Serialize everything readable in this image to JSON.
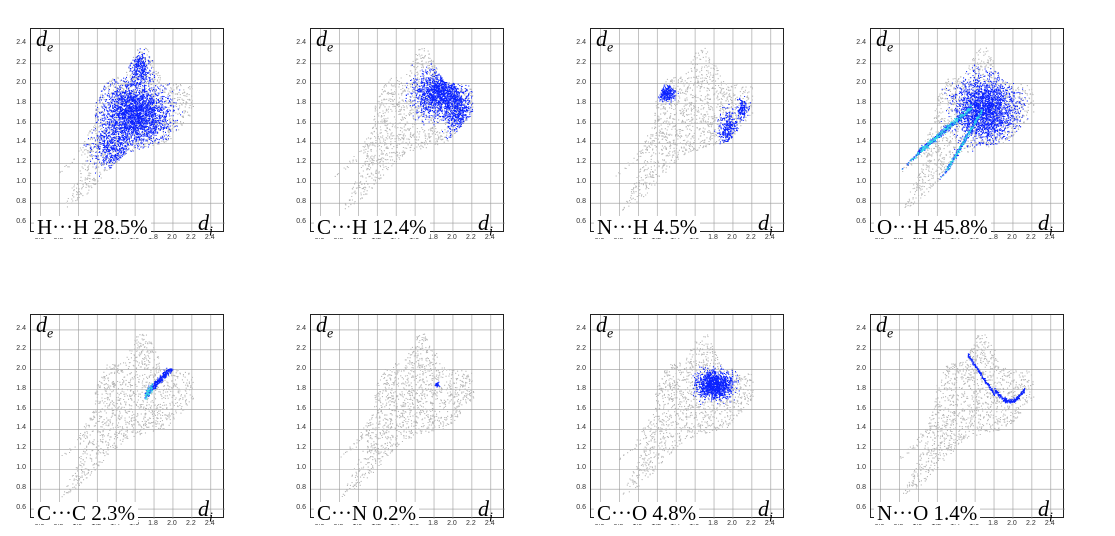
{
  "axis": {
    "ticks": [
      "0.6",
      "0.8",
      "1.0",
      "1.2",
      "1.4",
      "1.6",
      "1.8",
      "2.0",
      "2.2",
      "2.4"
    ],
    "de_base": "d",
    "de_sub": "e",
    "di_base": "d",
    "di_sub": "i"
  },
  "colors": {
    "background_cloud": "#b8b8b8",
    "contact_blue": "#0a22ff",
    "contact_cyan": "#2fd6e6",
    "grid": "#9a9a9a"
  },
  "panels": [
    {
      "label": "H···H 28.5%",
      "contact": "H···H",
      "percent": 28.5
    },
    {
      "label": "C···H 12.4%",
      "contact": "C···H",
      "percent": 12.4
    },
    {
      "label": "N···H 4.5%",
      "contact": "N···H",
      "percent": 4.5
    },
    {
      "label": "O···H 45.8%",
      "contact": "O···H",
      "percent": 45.8
    },
    {
      "label": "C···C 2.3%",
      "contact": "C···C",
      "percent": 2.3
    },
    {
      "label": "C···N 0.2%",
      "contact": "C···N",
      "percent": 0.2
    },
    {
      "label": "C···O 4.8%",
      "contact": "C···O",
      "percent": 4.8
    },
    {
      "label": "N···O 1.4%",
      "contact": "N···O",
      "percent": 1.4
    }
  ]
}
